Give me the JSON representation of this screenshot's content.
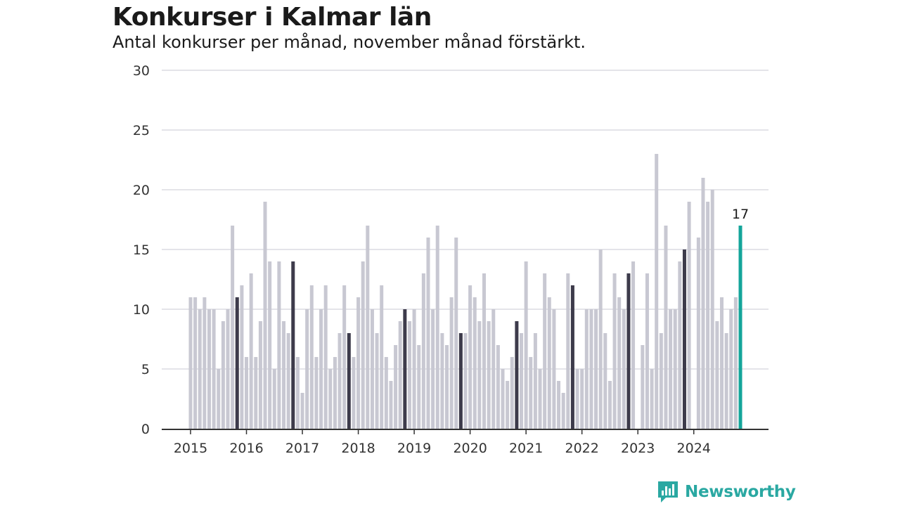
{
  "title": "Konkurser i Kalmar län",
  "subtitle": "Antal konkurser per månad, november månad förstärkt.",
  "brand": "Newsworthy",
  "colors": {
    "bar": "#c8c8d2",
    "highlight": "#3d3b4b",
    "latest": "#14a59a",
    "grid": "#dcdce2",
    "axis": "#333333"
  },
  "chart_data": {
    "type": "bar",
    "x_start": "2015-01",
    "ylim": [
      0,
      30
    ],
    "yticks": [
      0,
      5,
      10,
      15,
      20,
      25,
      30
    ],
    "xticks": [
      "2015",
      "2016",
      "2017",
      "2018",
      "2019",
      "2020",
      "2021",
      "2022",
      "2023",
      "2024"
    ],
    "highlight_month": "november",
    "latest_label": "17",
    "values": [
      11,
      11,
      10,
      11,
      10,
      10,
      5,
      9,
      10,
      17,
      11,
      12,
      6,
      13,
      6,
      9,
      19,
      14,
      5,
      14,
      9,
      8,
      14,
      6,
      3,
      10,
      12,
      6,
      10,
      12,
      5,
      6,
      8,
      12,
      8,
      6,
      11,
      14,
      17,
      10,
      8,
      12,
      6,
      4,
      7,
      9,
      10,
      9,
      10,
      7,
      13,
      16,
      10,
      17,
      8,
      7,
      11,
      16,
      8,
      8,
      12,
      11,
      9,
      13,
      9,
      10,
      7,
      5,
      4,
      6,
      9,
      8,
      14,
      6,
      8,
      5,
      13,
      11,
      10,
      4,
      3,
      13,
      12,
      5,
      5,
      10,
      10,
      10,
      15,
      8,
      4,
      13,
      11,
      10,
      13,
      14,
      0,
      7,
      13,
      5,
      23,
      8,
      17,
      10,
      10,
      14,
      15,
      19,
      0,
      16,
      21,
      19,
      20,
      9,
      11,
      8,
      10,
      11,
      17
    ]
  }
}
